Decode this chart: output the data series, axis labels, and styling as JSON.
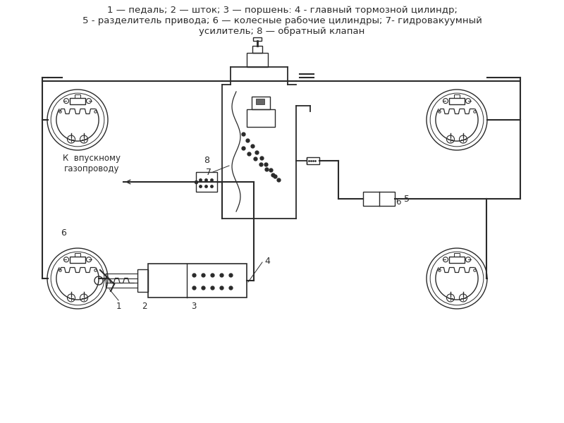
{
  "title_line1": "1 — педаль; 2 — шток; 3 — поршень: 4 - главный тормозной цилиндр;",
  "title_line2": "5 - разделитель привода; 6 — колесные рабочие цилиндры; 7- гидровакуумный",
  "title_line3": "усилитель; 8 — обратный клапан",
  "label_gas": "К  впускному\nгазопроводу",
  "bg_color": "#ffffff",
  "line_color": "#2a2a2a",
  "text_color": "#2a2a2a"
}
